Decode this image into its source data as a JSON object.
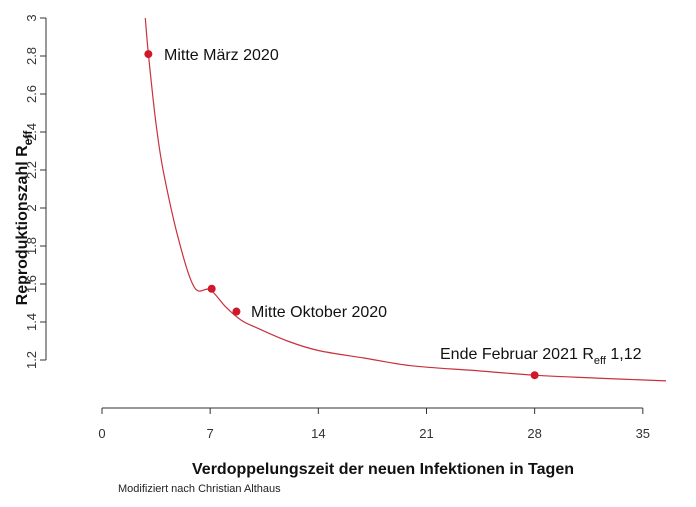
{
  "chart_data": {
    "type": "line",
    "xlabel": "Verdoppelungszeit der neuen Infektionen in  Tagen",
    "ylabel": {
      "main": "Reproduktionszahl R",
      "sub": "eff"
    },
    "xlim": [
      0,
      36.5
    ],
    "ylim": [
      1.0,
      3.0
    ],
    "xticks": [
      0,
      7,
      14,
      21,
      28,
      35
    ],
    "yticks": [
      1.2,
      1.4,
      1.6,
      1.8,
      2.0,
      2.2,
      2.4,
      2.6,
      2.8,
      3.0
    ],
    "ytick_labels": [
      "1.2",
      "1.4",
      "1.6",
      "1.8",
      "2",
      "2.2",
      "2.4",
      "2.6",
      "2.8",
      "3"
    ],
    "series": [
      {
        "style": "line",
        "x": [
          2.8,
          3,
          3.5,
          4,
          5,
          6,
          7,
          8,
          9,
          10,
          12,
          14,
          17,
          20,
          24,
          28,
          32,
          36.5
        ],
        "y": [
          3.0,
          2.81,
          2.44,
          2.18,
          1.82,
          1.58,
          1.57,
          1.48,
          1.41,
          1.37,
          1.3,
          1.25,
          1.21,
          1.17,
          1.145,
          1.12,
          1.105,
          1.09
        ]
      }
    ],
    "points": [
      {
        "x": 3.0,
        "y": 2.81
      },
      {
        "x": 7.1,
        "y": 1.575
      },
      {
        "x": 8.7,
        "y": 1.455
      },
      {
        "x": 28.0,
        "y": 1.12
      }
    ],
    "annotations": {
      "a1": "Mitte März 2020",
      "a2": "Mitte Oktober 2020",
      "a3_main": "Ende Februar 2021 R",
      "a3_sub": "eff",
      "a3_tail": " 1,12"
    }
  },
  "credit": "Modifiziert nach Christian Althaus"
}
